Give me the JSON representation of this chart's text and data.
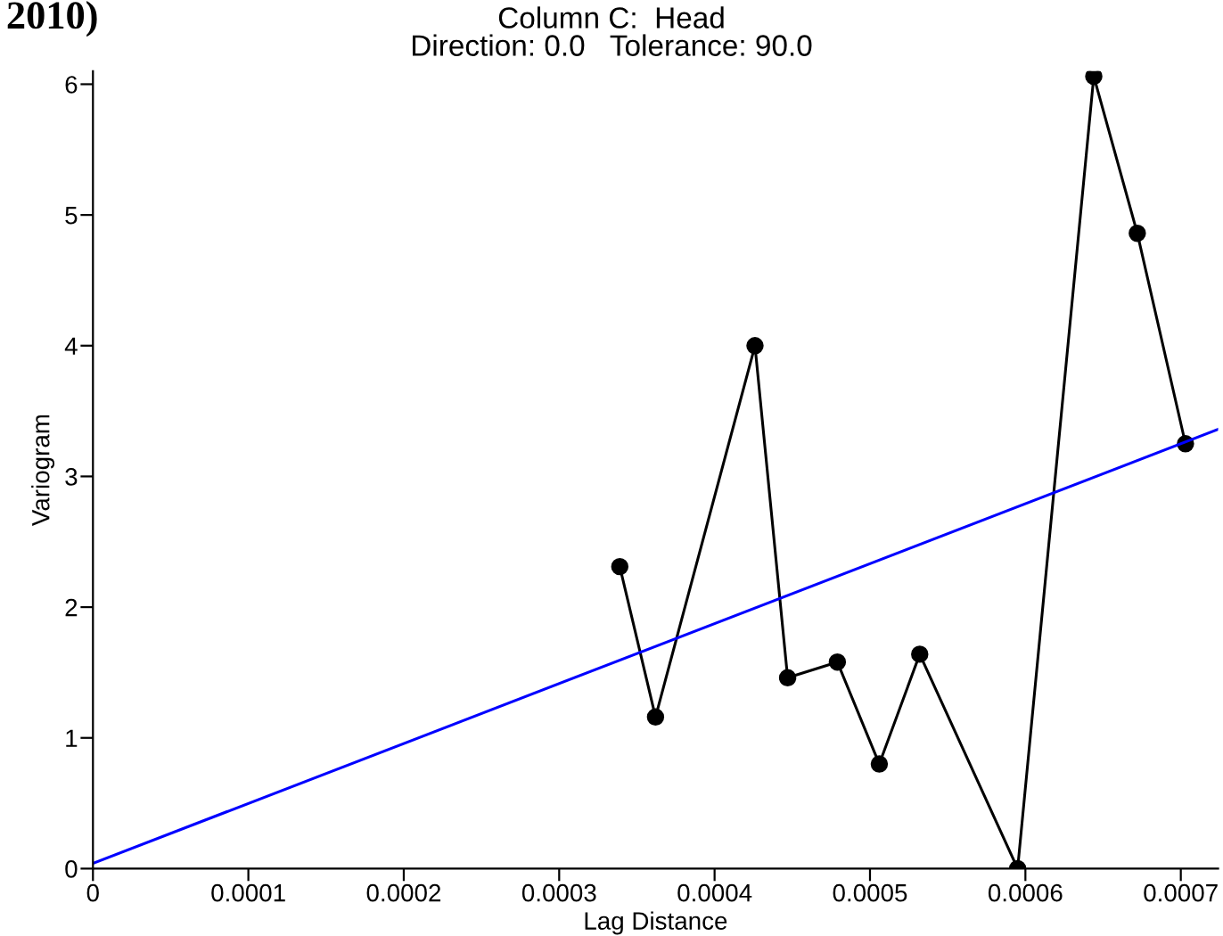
{
  "chart_data": {
    "type": "line",
    "title": "Column C:  Head\nDirection: 0.0   Tolerance: 90.0",
    "xlabel": "Lag Distance",
    "ylabel": "Variogram",
    "annotations": [
      "2010)"
    ],
    "series": [
      {
        "color": "#000000",
        "marker": "circle",
        "x": [
          0.000339,
          0.000362,
          0.000426,
          0.000447,
          0.000479,
          0.000506,
          0.000532,
          0.000595,
          0.000644,
          0.000672,
          0.000703
        ],
        "values": [
          2.31,
          1.16,
          4.0,
          1.46,
          1.58,
          0.8,
          1.64,
          0.0,
          6.06,
          4.86,
          3.25
        ]
      },
      {
        "color": "#0000ff",
        "marker": "none",
        "x": [
          0,
          0.000724
        ],
        "values": [
          0.04,
          3.36
        ]
      }
    ],
    "xlim": [
      0,
      0.000724
    ],
    "xticks": [
      0,
      0.0001,
      0.0002,
      0.0003,
      0.0004,
      0.0005,
      0.0006,
      0.0007
    ],
    "ylim": [
      0,
      6.1
    ],
    "yticks": [
      0,
      1,
      2,
      3,
      4,
      5,
      6
    ],
    "grid": false,
    "legend": false
  }
}
